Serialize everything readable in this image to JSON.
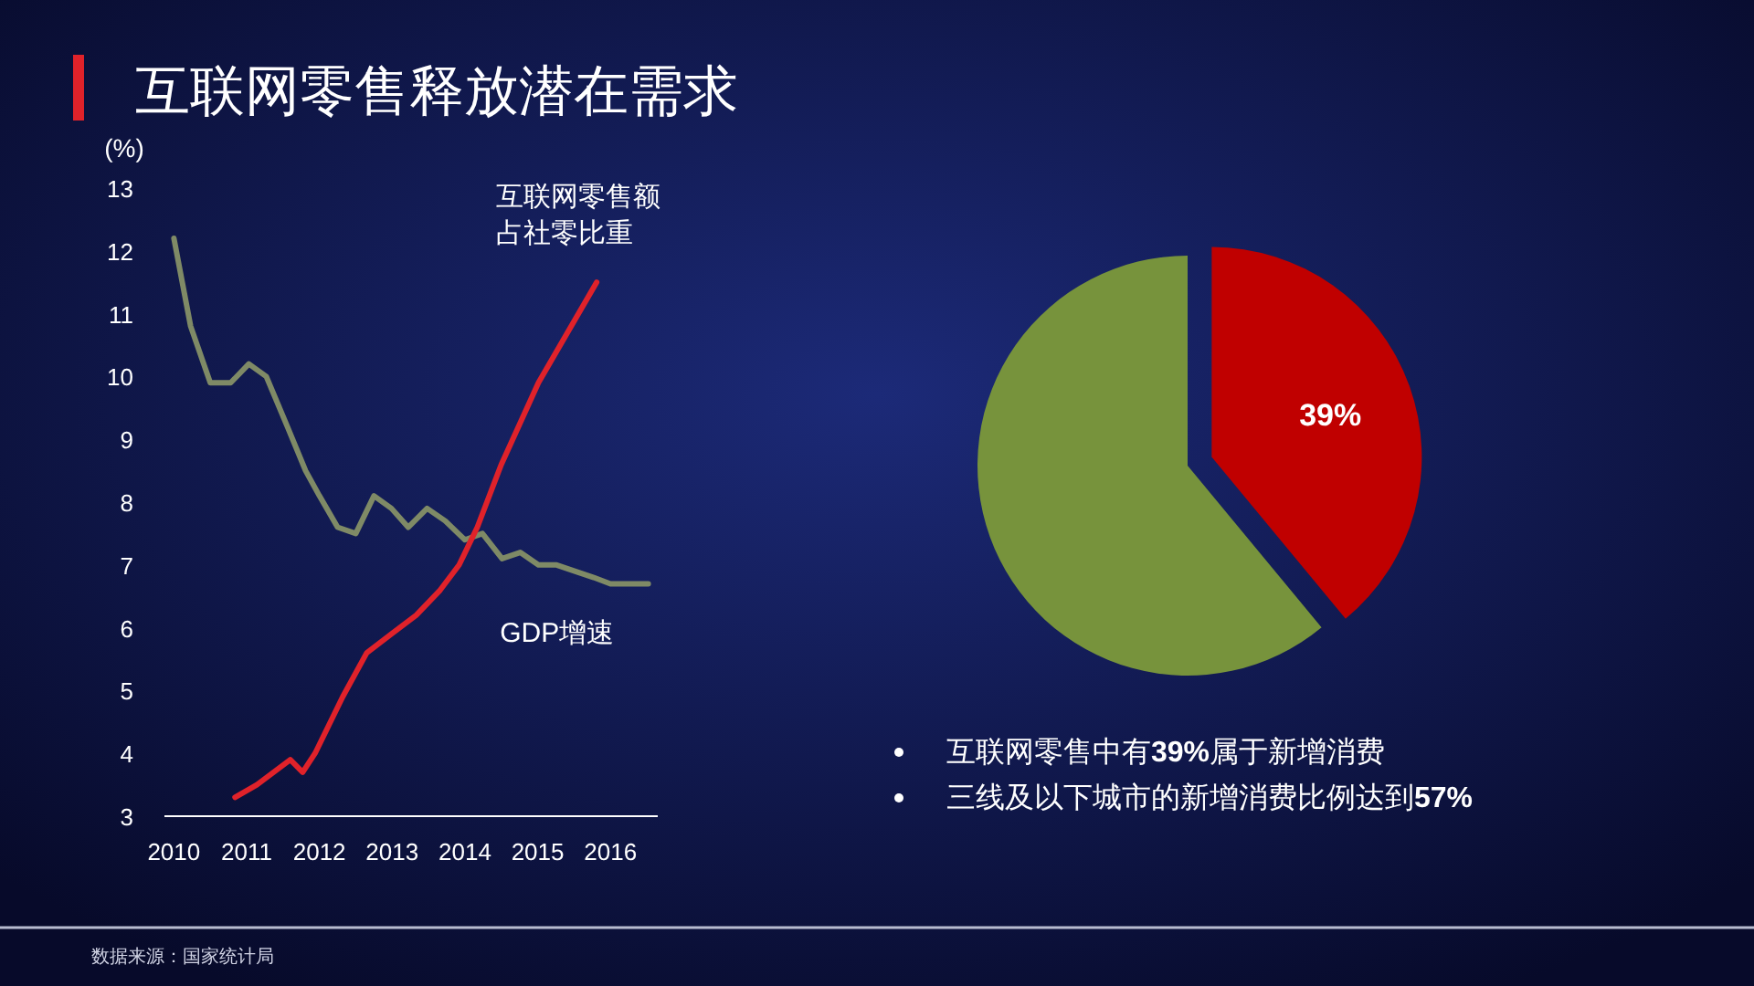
{
  "chart_data": [
    {
      "type": "line",
      "title": "互联网零售释放潜在需求",
      "ylabel": "(%)",
      "xlim": [
        2009.87,
        2016.65
      ],
      "xticks": [
        2010,
        2011,
        2012,
        2013,
        2014,
        2015,
        2016
      ],
      "ylim": [
        3,
        13
      ],
      "yticks": [
        3,
        4,
        5,
        6,
        7,
        8,
        9,
        10,
        11,
        12,
        13
      ],
      "grid": false,
      "legend": false,
      "annotations": [
        "数据来源：国家统计局"
      ],
      "series": [
        {
          "name": "GDP增速",
          "color": "#7f8a66",
          "x": [
            2010.0,
            2010.23,
            2010.5,
            2010.78,
            2011.03,
            2011.27,
            2011.56,
            2011.81,
            2012.0,
            2012.25,
            2012.5,
            2012.75,
            2012.99,
            2013.22,
            2013.48,
            2013.73,
            2014.0,
            2014.24,
            2014.51,
            2014.76,
            2015.01,
            2015.26,
            2015.51,
            2015.77,
            2016.0,
            2016.52
          ],
          "values": [
            12.2,
            10.8,
            9.9,
            9.9,
            10.2,
            10.0,
            9.2,
            8.5,
            8.1,
            7.6,
            7.5,
            8.1,
            7.9,
            7.6,
            7.9,
            7.7,
            7.4,
            7.5,
            7.1,
            7.2,
            7.0,
            7.0,
            6.9,
            6.8,
            6.7,
            6.7
          ]
        },
        {
          "name": "互联网零售额占社零比重",
          "color": "#e0222a",
          "x": [
            2010.84,
            2011.14,
            2011.6,
            2011.77,
            2011.94,
            2012.32,
            2012.65,
            2012.99,
            2013.33,
            2013.66,
            2013.92,
            2014.17,
            2014.5,
            2015.01,
            2015.51,
            2015.81
          ],
          "values": [
            3.3,
            3.5,
            3.9,
            3.7,
            4.0,
            4.9,
            5.6,
            5.9,
            6.2,
            6.6,
            7.0,
            7.6,
            8.6,
            9.9,
            10.9,
            11.5
          ]
        }
      ]
    },
    {
      "type": "pie",
      "categories": [
        null,
        null
      ],
      "values": [
        39,
        61
      ],
      "colors": [
        "#c00000",
        "#77933c"
      ],
      "value_labels": [
        "39%",
        null
      ],
      "annotations": [
        "互联网零售中有39%属于新增消费",
        "三线及以下城市的新增消费比例达到57%"
      ]
    }
  ]
}
